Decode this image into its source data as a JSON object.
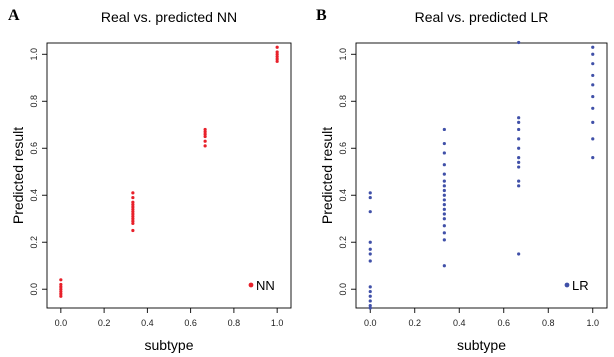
{
  "chart_data": [
    {
      "type": "scatter",
      "panel_letter": "A",
      "title": "Real vs. predicted NN",
      "xlabel": "subtype",
      "ylabel": "Predicted result",
      "xlim": [
        0.0,
        1.0
      ],
      "ylim": [
        0.0,
        1.0
      ],
      "x_ticks": [
        "0.0",
        "0.2",
        "0.4",
        "0.6",
        "0.8",
        "1.0"
      ],
      "y_ticks": [
        "0.0",
        "0.2",
        "0.4",
        "0.6",
        "0.8",
        "1.0"
      ],
      "grid": false,
      "legend_position": "bottom-right",
      "series": [
        {
          "name": "NN",
          "color": "#e8202a",
          "points": [
            [
              0.0,
              0.04
            ],
            [
              0.0,
              0.02
            ],
            [
              0.0,
              0.01
            ],
            [
              0.0,
              0.0
            ],
            [
              0.0,
              -0.01
            ],
            [
              0.0,
              -0.02
            ],
            [
              0.0,
              -0.03
            ],
            [
              0.333,
              0.41
            ],
            [
              0.333,
              0.39
            ],
            [
              0.333,
              0.37
            ],
            [
              0.333,
              0.36
            ],
            [
              0.333,
              0.35
            ],
            [
              0.333,
              0.34
            ],
            [
              0.333,
              0.33
            ],
            [
              0.333,
              0.32
            ],
            [
              0.333,
              0.31
            ],
            [
              0.333,
              0.3
            ],
            [
              0.333,
              0.29
            ],
            [
              0.333,
              0.28
            ],
            [
              0.333,
              0.25
            ],
            [
              0.667,
              0.68
            ],
            [
              0.667,
              0.67
            ],
            [
              0.667,
              0.66
            ],
            [
              0.667,
              0.65
            ],
            [
              0.667,
              0.63
            ],
            [
              0.667,
              0.61
            ],
            [
              1.0,
              1.03
            ],
            [
              1.0,
              1.01
            ],
            [
              1.0,
              1.0
            ],
            [
              1.0,
              0.99
            ],
            [
              1.0,
              0.98
            ],
            [
              1.0,
              0.97
            ]
          ]
        }
      ]
    },
    {
      "type": "scatter",
      "panel_letter": "B",
      "title": "Real vs. predicted LR",
      "xlabel": "subtype",
      "ylabel": "Predicted result",
      "xlim": [
        0.0,
        1.0
      ],
      "ylim": [
        0.0,
        1.0
      ],
      "x_ticks": [
        "0.0",
        "0.2",
        "0.4",
        "0.6",
        "0.8",
        "1.0"
      ],
      "y_ticks": [
        "0.0",
        "0.2",
        "0.4",
        "0.6",
        "0.8",
        "1.0"
      ],
      "grid": false,
      "legend_position": "bottom-right",
      "series": [
        {
          "name": "LR",
          "color": "#4050a8",
          "points": [
            [
              0.0,
              0.41
            ],
            [
              0.0,
              0.39
            ],
            [
              0.0,
              0.33
            ],
            [
              0.0,
              0.2
            ],
            [
              0.0,
              0.17
            ],
            [
              0.0,
              0.15
            ],
            [
              0.0,
              0.12
            ],
            [
              0.0,
              0.01
            ],
            [
              0.0,
              -0.01
            ],
            [
              0.0,
              -0.03
            ],
            [
              0.0,
              -0.05
            ],
            [
              0.0,
              -0.07
            ],
            [
              0.0,
              -0.08
            ],
            [
              0.333,
              0.68
            ],
            [
              0.333,
              0.62
            ],
            [
              0.333,
              0.58
            ],
            [
              0.333,
              0.53
            ],
            [
              0.333,
              0.49
            ],
            [
              0.333,
              0.46
            ],
            [
              0.333,
              0.44
            ],
            [
              0.333,
              0.42
            ],
            [
              0.333,
              0.4
            ],
            [
              0.333,
              0.38
            ],
            [
              0.333,
              0.36
            ],
            [
              0.333,
              0.34
            ],
            [
              0.333,
              0.32
            ],
            [
              0.333,
              0.3
            ],
            [
              0.333,
              0.27
            ],
            [
              0.333,
              0.24
            ],
            [
              0.333,
              0.21
            ],
            [
              0.333,
              0.1
            ],
            [
              0.667,
              1.05
            ],
            [
              0.667,
              0.73
            ],
            [
              0.667,
              0.71
            ],
            [
              0.667,
              0.68
            ],
            [
              0.667,
              0.64
            ],
            [
              0.667,
              0.6
            ],
            [
              0.667,
              0.56
            ],
            [
              0.667,
              0.54
            ],
            [
              0.667,
              0.52
            ],
            [
              0.667,
              0.46
            ],
            [
              0.667,
              0.44
            ],
            [
              0.667,
              0.15
            ],
            [
              1.0,
              1.03
            ],
            [
              1.0,
              1.0
            ],
            [
              1.0,
              0.96
            ],
            [
              1.0,
              0.91
            ],
            [
              1.0,
              0.87
            ],
            [
              1.0,
              0.82
            ],
            [
              1.0,
              0.77
            ],
            [
              1.0,
              0.71
            ],
            [
              1.0,
              0.64
            ],
            [
              1.0,
              0.56
            ]
          ]
        }
      ]
    }
  ]
}
